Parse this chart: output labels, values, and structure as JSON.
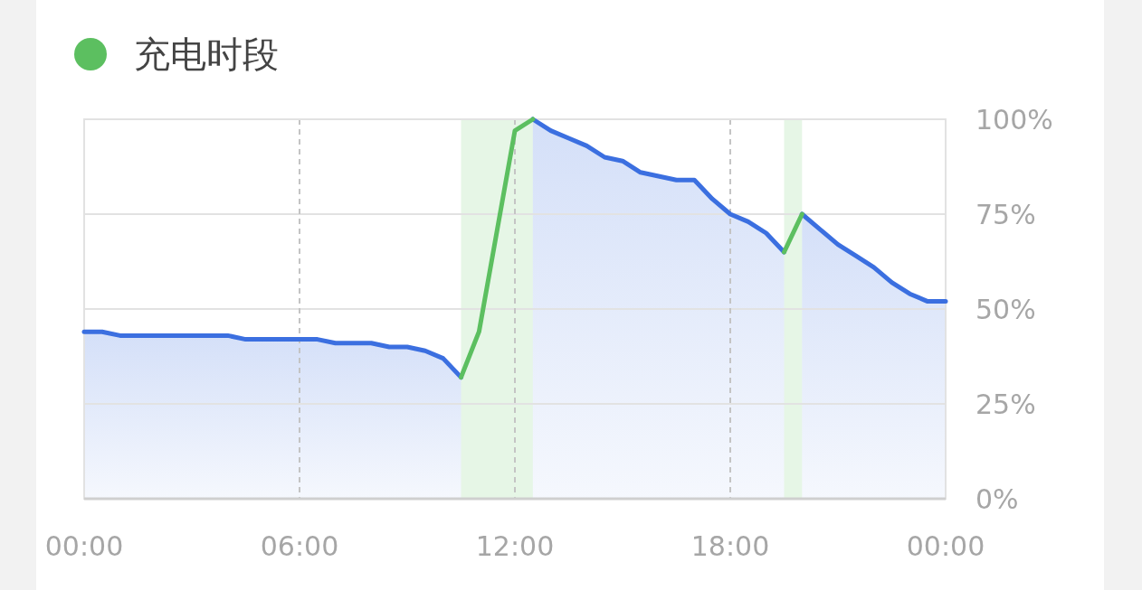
{
  "chart_data": {
    "type": "area",
    "xlim": [
      0,
      24
    ],
    "ylim": [
      0,
      100
    ],
    "xticks": [
      {
        "value": 0,
        "label": "00:00"
      },
      {
        "value": 6,
        "label": "06:00"
      },
      {
        "value": 12,
        "label": "12:00"
      },
      {
        "value": 18,
        "label": "18:00"
      },
      {
        "value": 24,
        "label": "00:00"
      }
    ],
    "yticks": [
      {
        "value": 0,
        "label": "0%"
      },
      {
        "value": 25,
        "label": "25%"
      },
      {
        "value": 50,
        "label": "50%"
      },
      {
        "value": 75,
        "label": "75%"
      },
      {
        "value": 100,
        "label": "100%"
      }
    ],
    "grid": true,
    "legend": "top left",
    "line_style": "solid",
    "bands": [
      {
        "axis": "x",
        "from": 10.5,
        "to": 12.5,
        "color": "#e6f6e6"
      },
      {
        "axis": "x",
        "from": 19.5,
        "to": 20,
        "color": "#e6f6e6"
      }
    ],
    "series": [
      {
        "color": "#3b6fe0",
        "x": [
          0,
          0.5,
          1,
          4,
          4.5,
          6.5,
          7,
          8,
          8.5,
          9,
          9.5,
          10,
          10.5
        ],
        "values": [
          44,
          44,
          43,
          43,
          42,
          42,
          41,
          41,
          40,
          40,
          39,
          37,
          32
        ]
      },
      {
        "color": "#3b6fe0",
        "x": [
          12.5,
          13,
          13.5,
          14,
          14.5,
          15,
          15.5,
          16,
          16.5,
          17,
          17.5,
          18,
          18.5,
          19,
          19.5
        ],
        "values": [
          100,
          97,
          95,
          93,
          90,
          89,
          86,
          85,
          84,
          84,
          79,
          75,
          73,
          70,
          65
        ]
      },
      {
        "color": "#3b6fe0",
        "x": [
          20,
          20.5,
          21,
          21.5,
          22,
          22.5,
          23,
          23.5,
          24
        ],
        "values": [
          75,
          71,
          67,
          64,
          61,
          57,
          54,
          52,
          52
        ]
      },
      {
        "type": "line",
        "name": "充电时段",
        "color": "#5cbf60",
        "x": [
          10.5,
          11,
          12,
          12.5
        ],
        "values": [
          32,
          44,
          97,
          100
        ]
      },
      {
        "type": "line",
        "color": "#5cbf60",
        "x": [
          19.5,
          20
        ],
        "values": [
          65,
          75
        ]
      }
    ]
  }
}
